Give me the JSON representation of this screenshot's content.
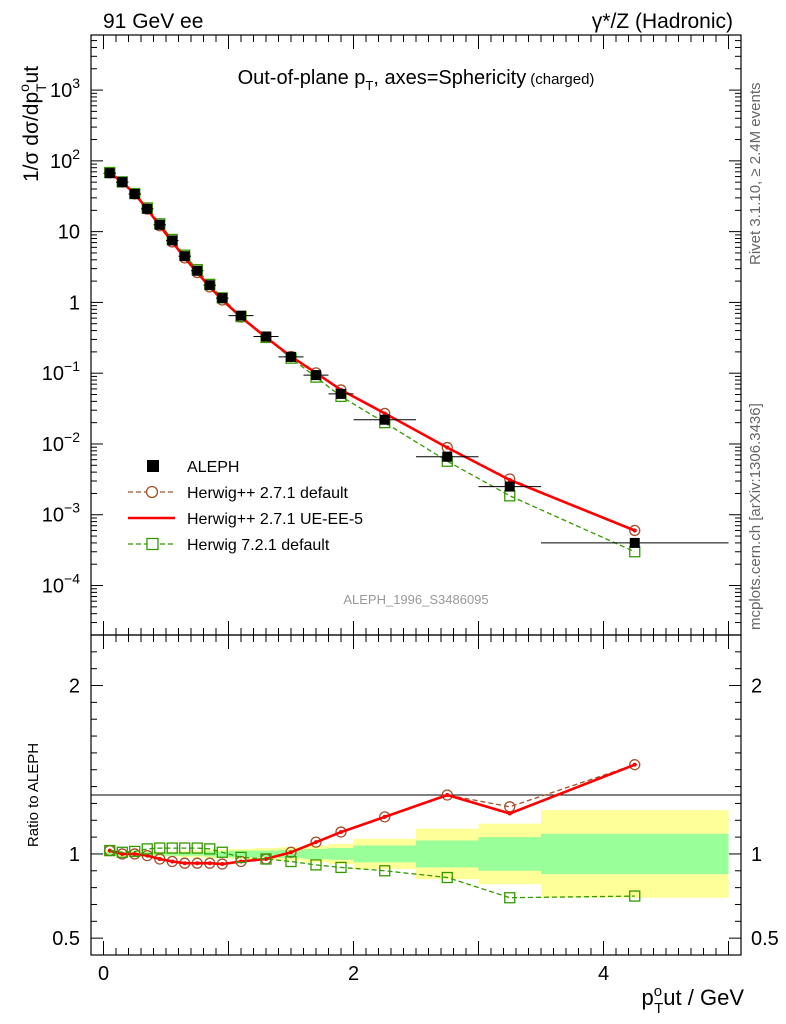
{
  "header": {
    "left": "91 GeV ee",
    "right": "γ*/Z (Hadronic)"
  },
  "side": {
    "rivet": "Rivet 3.1.10, ≥ 2.4M events",
    "mcplots": "mcplots.cern.ch [arXiv:1306.3436]"
  },
  "watermark": "ALEPH_1996_S3486095",
  "colors": {
    "data": "#000000",
    "herwig_default": "#a0522d",
    "herwig_ueee5": "#ff0000",
    "herwig72": "#339900",
    "band_inner": "#99ff99",
    "band_outer": "#ffff99"
  },
  "chart_data": [
    {
      "type": "scatter",
      "panel": "main",
      "title": "Out-of-plane p_T, axes=Sphericity (charged)",
      "title_parts": {
        "main": "Out-of-plane p",
        "sub": "T",
        "rest": ", axes=Sphericity",
        "small": "(charged)"
      },
      "ylabel": "1/σ dσ/dp_T^out",
      "ylabel_parts": {
        "main": "1/σ dσ/dp",
        "sup": "o",
        "sub": "T",
        "rest": "ut"
      },
      "yscale": "log",
      "ylim": [
        2e-05,
        6000
      ],
      "xlim": [
        -0.1,
        5.1
      ],
      "yticks": [
        {
          "v": 0.0001,
          "m": "10",
          "e": "−4"
        },
        {
          "v": 0.001,
          "m": "10",
          "e": "−3"
        },
        {
          "v": 0.01,
          "m": "10",
          "e": "−2"
        },
        {
          "v": 0.1,
          "m": "10",
          "e": "−1"
        },
        {
          "v": 1,
          "m": "1",
          "e": ""
        },
        {
          "v": 10,
          "m": "10",
          "e": ""
        },
        {
          "v": 100,
          "m": "10",
          "e": "2"
        },
        {
          "v": 1000,
          "m": "10",
          "e": "3"
        }
      ],
      "x": [
        0.05,
        0.15,
        0.25,
        0.35,
        0.45,
        0.55,
        0.65,
        0.75,
        0.85,
        0.95,
        1.1,
        1.3,
        1.5,
        1.7,
        1.9,
        2.25,
        2.75,
        3.25,
        4.25
      ],
      "xerr": [
        0.05,
        0.05,
        0.05,
        0.05,
        0.05,
        0.05,
        0.05,
        0.05,
        0.05,
        0.05,
        0.1,
        0.1,
        0.1,
        0.1,
        0.1,
        0.25,
        0.25,
        0.25,
        0.75
      ],
      "legend_position": "middle-left",
      "series": [
        {
          "key": "data",
          "name": "ALEPH",
          "style": "filled-square",
          "values": [
            67,
            50,
            34,
            21,
            12.5,
            7.5,
            4.5,
            2.8,
            1.75,
            1.15,
            0.65,
            0.33,
            0.17,
            0.094,
            0.051,
            0.022,
            0.0066,
            0.0025,
            0.0004
          ]
        },
        {
          "key": "herwig_default",
          "name": "Herwig++ 2.7.1 default",
          "style": "dashed-open-circle",
          "values": [
            68,
            50,
            34,
            20.8,
            12.1,
            7.15,
            4.25,
            2.64,
            1.65,
            1.08,
            0.62,
            0.32,
            0.172,
            0.101,
            0.058,
            0.027,
            0.0089,
            0.0032,
            0.0006
          ]
        },
        {
          "key": "herwig_ueee5",
          "name": "Herwig++ 2.7.1 UE-EE-5",
          "style": "solid-line",
          "values": [
            68,
            50,
            34,
            20.8,
            12.1,
            7.15,
            4.25,
            2.64,
            1.65,
            1.08,
            0.62,
            0.32,
            0.172,
            0.101,
            0.058,
            0.027,
            0.0089,
            0.0031,
            0.0006
          ]
        },
        {
          "key": "herwig72",
          "name": "Herwig 7.2.1 default",
          "style": "dashed-open-square",
          "values": [
            68.5,
            50.5,
            34.5,
            21.6,
            12.9,
            7.75,
            4.65,
            2.9,
            1.8,
            1.16,
            0.63,
            0.32,
            0.163,
            0.088,
            0.047,
            0.02,
            0.0057,
            0.00185,
            0.0003
          ]
        }
      ]
    },
    {
      "type": "line",
      "panel": "ratio",
      "ylabel": "Ratio to ALEPH",
      "xlabel": "p_T^out / GeV",
      "xlabel_parts": {
        "main": "p",
        "sup": "o",
        "sub": "T",
        "rest": "ut / GeV"
      },
      "ylim": [
        0.4,
        2.3
      ],
      "xlim": [
        -0.1,
        5.1
      ],
      "xticks": [
        0,
        2,
        4
      ],
      "yticks": [
        0.5,
        1,
        2
      ],
      "bands": {
        "edges": [
          0.0,
          0.1,
          0.2,
          0.3,
          0.4,
          0.5,
          0.6,
          0.7,
          0.8,
          0.9,
          1.0,
          1.2,
          1.4,
          1.6,
          1.8,
          2.0,
          2.5,
          3.0,
          3.5,
          5.0
        ],
        "inner_half": [
          0.01,
          0.01,
          0.01,
          0.01,
          0.01,
          0.01,
          0.01,
          0.01,
          0.015,
          0.015,
          0.02,
          0.02,
          0.025,
          0.03,
          0.035,
          0.05,
          0.08,
          0.1,
          0.12
        ],
        "outer_half": [
          0.015,
          0.015,
          0.015,
          0.015,
          0.015,
          0.015,
          0.02,
          0.02,
          0.025,
          0.025,
          0.03,
          0.035,
          0.04,
          0.05,
          0.06,
          0.09,
          0.15,
          0.18,
          0.26
        ]
      },
      "x": [
        0.05,
        0.15,
        0.25,
        0.35,
        0.45,
        0.55,
        0.65,
        0.75,
        0.85,
        0.95,
        1.1,
        1.3,
        1.5,
        1.7,
        1.9,
        2.25,
        2.75,
        3.25,
        4.25
      ],
      "series": [
        {
          "key": "herwig_default",
          "style": "dashed-open-circle",
          "values": [
            1.02,
            1.0,
            1.0,
            0.99,
            0.97,
            0.955,
            0.945,
            0.945,
            0.945,
            0.94,
            0.955,
            0.97,
            1.01,
            1.07,
            1.13,
            1.22,
            1.35,
            1.28,
            1.53
          ]
        },
        {
          "key": "herwig_ueee5",
          "style": "solid-line",
          "values": [
            1.02,
            1.0,
            1.0,
            0.99,
            0.97,
            0.955,
            0.945,
            0.945,
            0.945,
            0.94,
            0.955,
            0.97,
            1.01,
            1.07,
            1.13,
            1.22,
            1.35,
            1.24,
            1.53
          ]
        },
        {
          "key": "herwig72",
          "style": "dashed-open-square",
          "values": [
            1.02,
            1.01,
            1.015,
            1.03,
            1.035,
            1.035,
            1.035,
            1.035,
            1.03,
            1.01,
            0.98,
            0.97,
            0.955,
            0.935,
            0.92,
            0.9,
            0.86,
            0.74,
            0.75
          ]
        }
      ]
    }
  ]
}
